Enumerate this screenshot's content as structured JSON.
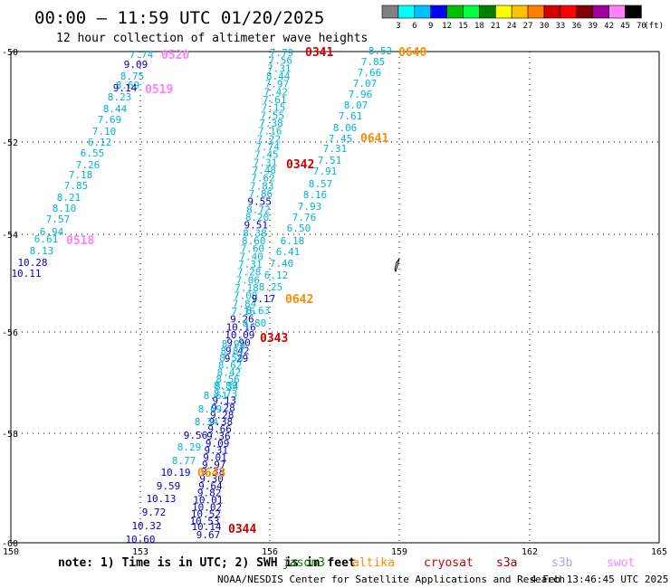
{
  "header": {
    "title": "00:00 – 11:59 UTC 01/20/2025",
    "subtitle": "12 hour collection of altimeter wave heights"
  },
  "legend": {
    "labels": [
      "3",
      "6",
      "9",
      "12",
      "15",
      "18",
      "21",
      "24",
      "27",
      "30",
      "33",
      "36",
      "39",
      "42",
      "45",
      "70"
    ],
    "unit": "(ft)",
    "colors": [
      "#808080",
      "#00ffff",
      "#00c0ff",
      "#0000ff",
      "#00c000",
      "#00ff40",
      "#008000",
      "#ffff00",
      "#ffc000",
      "#ff8000",
      "#d00000",
      "#ff0000",
      "#800000",
      "#a000a0",
      "#ff80ff",
      "#000000"
    ]
  },
  "map": {
    "lon_labels": [
      "150",
      "153",
      "156",
      "159",
      "162",
      "165"
    ],
    "lat_labels": [
      "-50",
      "-52",
      "-54",
      "-56",
      "-58",
      "-60"
    ],
    "lon_range": [
      150,
      165
    ],
    "lat_range": [
      -60,
      -50
    ],
    "grid": "dotted"
  },
  "tracks": {
    "t1": [
      "7.74",
      "9.09",
      "8.75",
      "8.69",
      "9.14",
      "8.23",
      "8.44",
      "7.69",
      "7.10",
      "6.12",
      "6.55",
      "7.26",
      "7.18",
      "7.85",
      "8.21",
      "8.10",
      "7.57",
      "6.94",
      "6.61",
      "8.13",
      "10.28",
      "10.11"
    ],
    "t2": [
      "7.79",
      "7.56",
      "7.31",
      "8.44",
      "7.97",
      "7.42",
      "7.61",
      "7.15",
      "7.55",
      "7.38",
      "7.16",
      "7.22",
      "7.74",
      "7.45",
      "7.31",
      "7.48",
      "7.62",
      "7.83",
      "7.86",
      "9.55",
      "8.72",
      "8.20",
      "9.51",
      "8.38",
      "8.60",
      "7.60",
      "7.40",
      "7.31",
      "7.28",
      "7.06",
      "7.18",
      "7.00",
      "7.84",
      "7.16",
      "9.26",
      "10.16",
      "10.09",
      "9.90",
      "9.42",
      "9.29"
    ],
    "t3": [
      "8.52",
      "7.85",
      "7.66",
      "7.07",
      "7.96",
      "8.07",
      "7.61",
      "8.06",
      "7.45",
      "7.31",
      "7.51",
      "7.91",
      "8.57",
      "8.16",
      "7.93",
      "7.76",
      "6.50",
      "6.18",
      "6.41",
      "7.40",
      "6.12",
      "8.25",
      "9.17",
      "8.63",
      "8.80"
    ],
    "t4": [
      "8.99",
      "8.87",
      "8.58",
      "8.62",
      "8.42",
      "8.56",
      "8.34",
      "8.73",
      "9.13",
      "9.28",
      "9.28",
      "9.38",
      "9.66",
      "9.36",
      "9.09",
      "9.31",
      "9.01",
      "9.97",
      "9.38",
      "9.30",
      "9.64",
      "9.82",
      "10.01",
      "10.02",
      "10.52",
      "10.53"
    ],
    "t5": [
      "8.89",
      "8.34",
      "9.56",
      "8.29",
      "8.77",
      "10.19",
      "9.59",
      "10.13",
      "9.72",
      "10.32",
      "10.60",
      "10.14",
      "9.67",
      "8.61",
      "8.69"
    ],
    "t5_colors": [
      "#00b4d8",
      "#00b4d8",
      "#0000cc",
      "#00b4d8",
      "#00b4d8",
      "#0000cc",
      "#0000cc",
      "#0000cc",
      "#0000cc",
      "#0000cc",
      "#0000cc",
      "#0000cc",
      "#0000cc",
      "#00b4d8",
      "#00b4d8"
    ]
  },
  "passes": [
    {
      "label": "0520",
      "color": "#ff80ff"
    },
    {
      "label": "0519",
      "color": "#ff80ff"
    },
    {
      "label": "0518",
      "color": "#ff80ff"
    },
    {
      "label": "0341",
      "color": "#d00000"
    },
    {
      "label": "0342",
      "color": "#d00000"
    },
    {
      "label": "0343",
      "color": "#d00000"
    },
    {
      "label": "0344",
      "color": "#d00000"
    },
    {
      "label": "0640",
      "color": "#ff8c00"
    },
    {
      "label": "0641",
      "color": "#ff8c00"
    },
    {
      "label": "0642",
      "color": "#ff8c00"
    },
    {
      "label": "0643",
      "color": "#ff8c00"
    }
  ],
  "colors": {
    "cyan_track": "#00b4d8",
    "blue_track": "#0000cc"
  },
  "footer": {
    "note": "note: 1) Time is in UTC; 2) SWH is in feet",
    "satellites": [
      {
        "name": "jason3",
        "color": "#008000"
      },
      {
        "name": "altika",
        "color": "#ff8c00"
      },
      {
        "name": "cryosat",
        "color": "#d00000"
      },
      {
        "name": "s3a",
        "color": "#a00000"
      },
      {
        "name": "s3b",
        "color": "#b0a0f0"
      },
      {
        "name": "swot",
        "color": "#ff80ff"
      }
    ],
    "credit": "NOAA/NESDIS Center for Satellite Applications and Research",
    "timestamp": "4 Feb 13:46:45 UTC 2025"
  }
}
